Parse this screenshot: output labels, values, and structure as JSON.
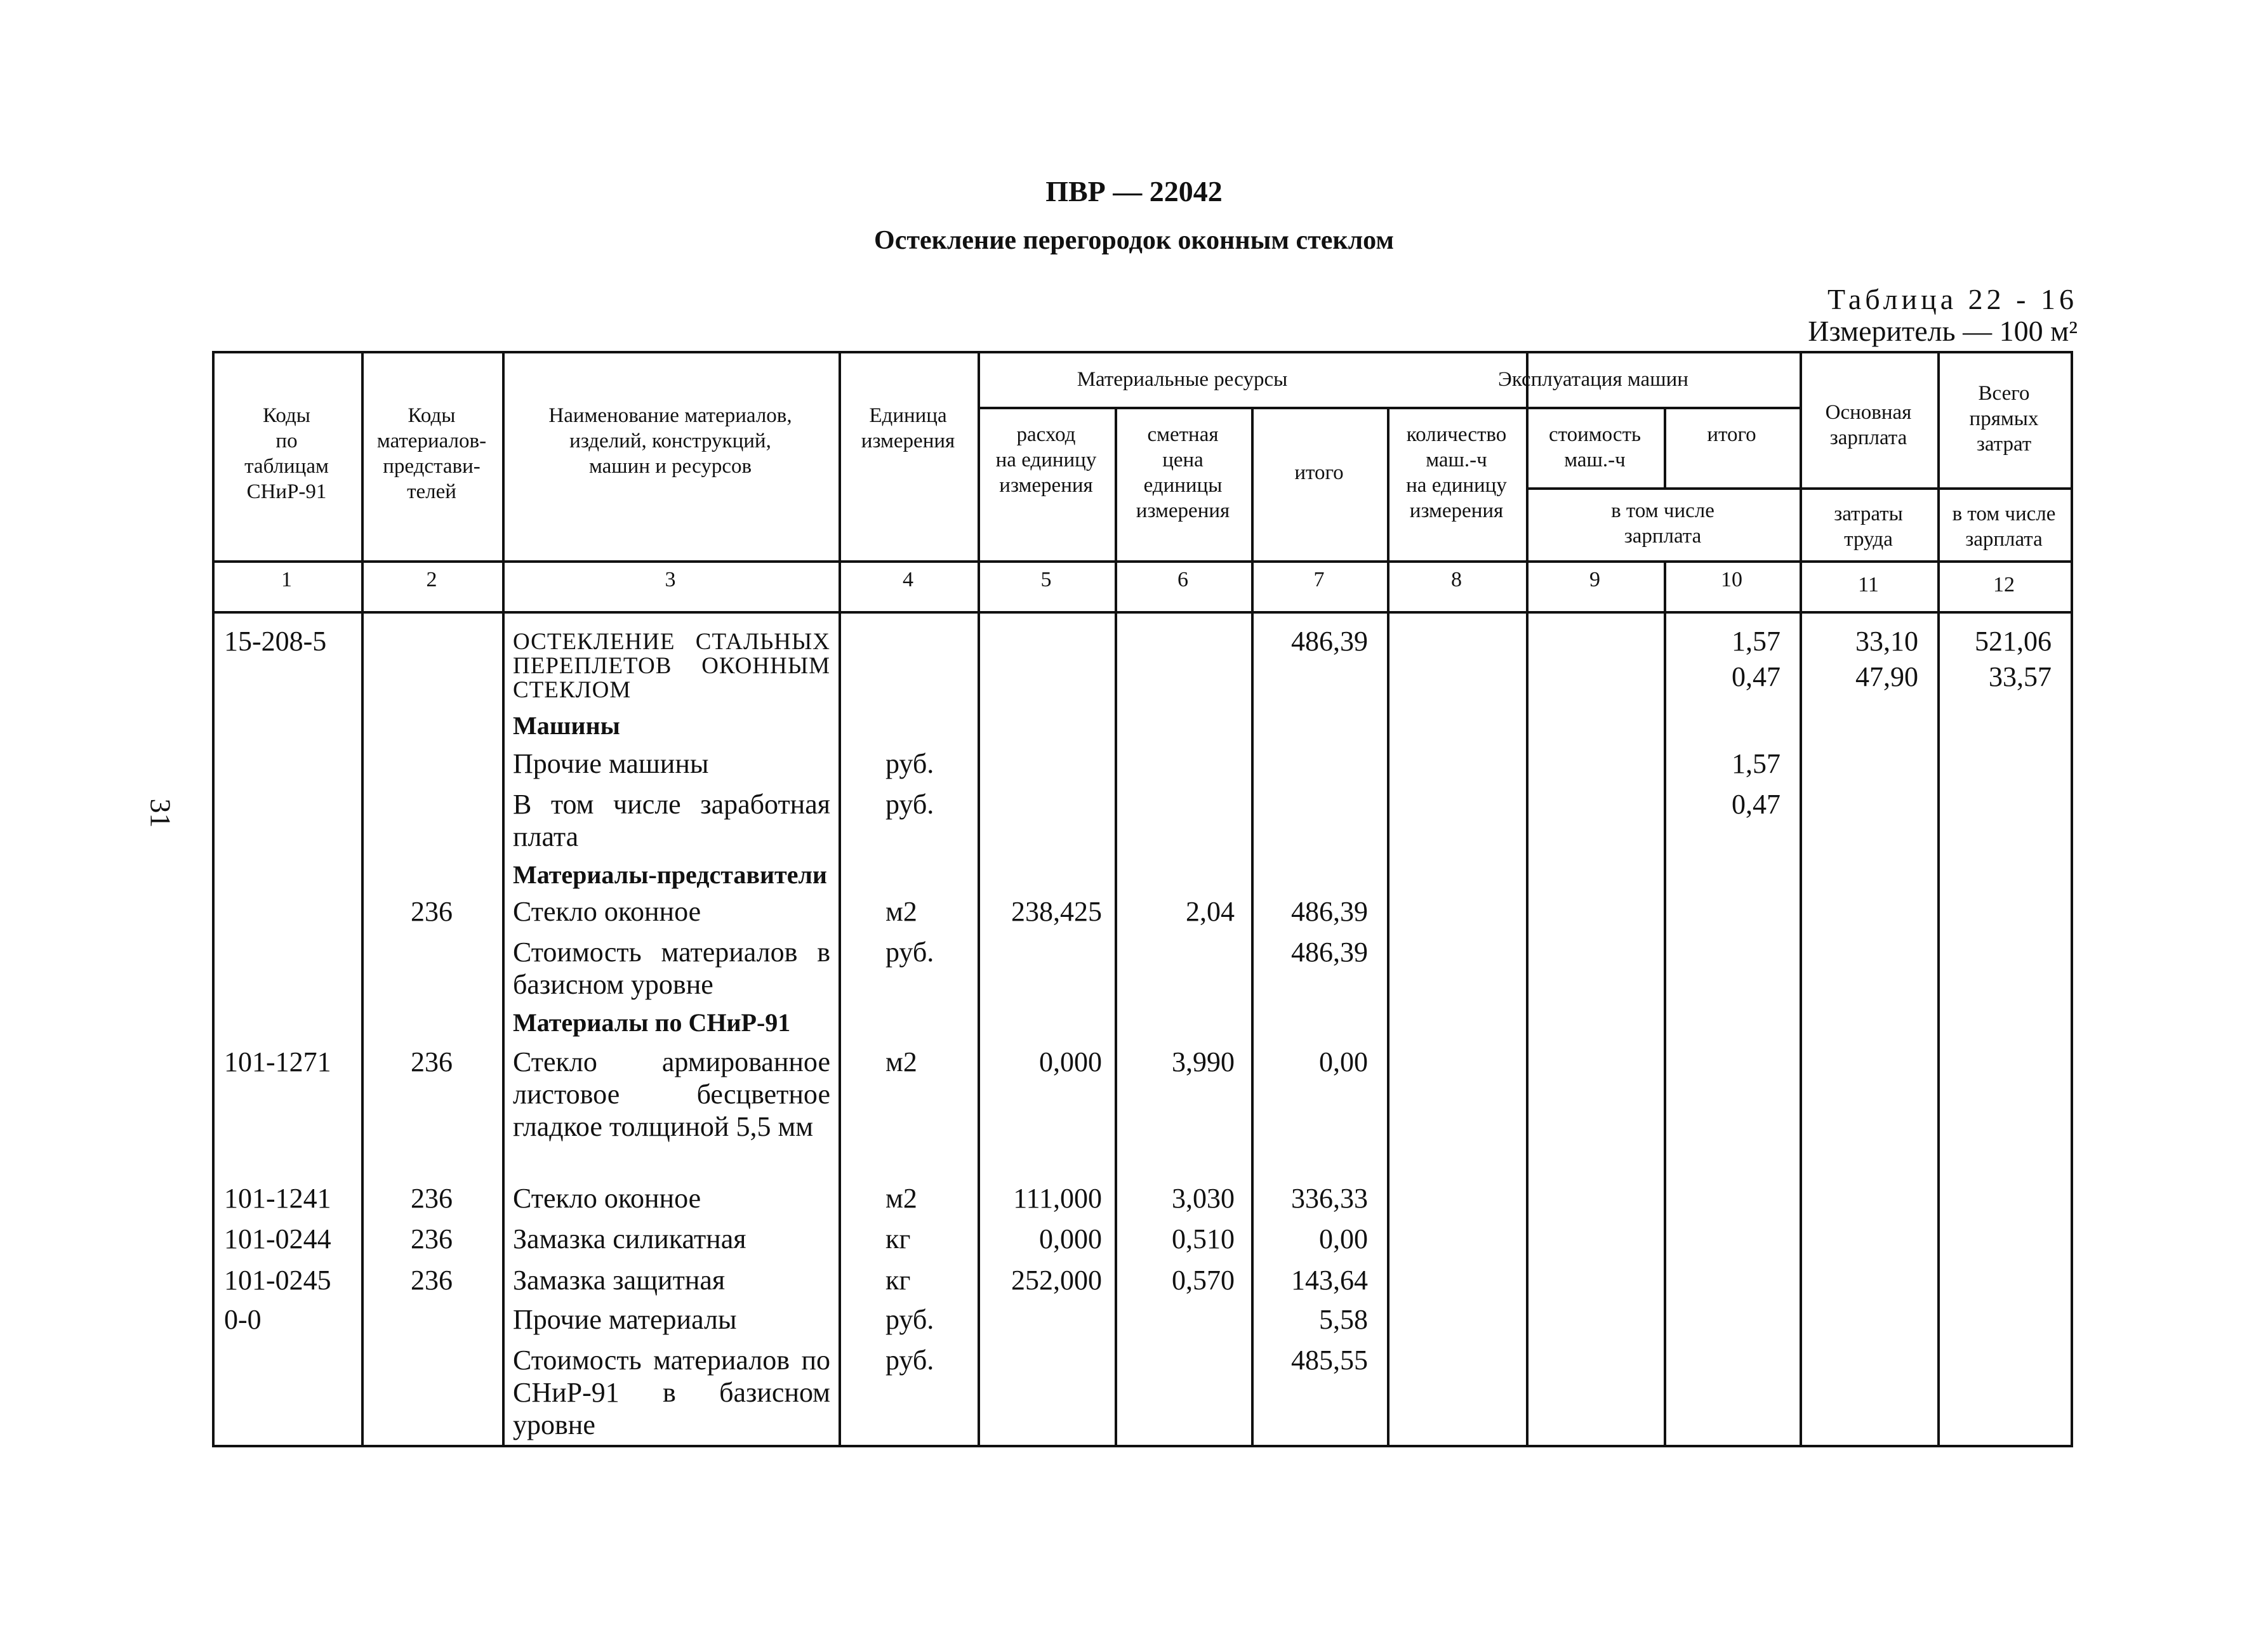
{
  "page_number": "31",
  "title": "ПВР — 22042",
  "subtitle": "Остекление перегородок оконным стеклом",
  "table_label": "Таблица 22 - 16",
  "measure": "Измеритель — 100 м²",
  "header": {
    "c1": [
      "Коды",
      "по",
      "таблицам",
      "СНиР-91"
    ],
    "c2": [
      "Коды",
      "материалов-",
      "представи-",
      "телей"
    ],
    "c3": [
      "Наименование материалов,",
      "изделий, конструкций,",
      "машин и ресурсов"
    ],
    "c4": [
      "Единица",
      "измерения"
    ],
    "mat": "Материальные ресурсы",
    "c5": [
      "расход",
      "на единицу",
      "измерения"
    ],
    "c6": [
      "сметная",
      "цена",
      "единицы",
      "измерения"
    ],
    "c7": [
      "итого"
    ],
    "mach": "Эксплуатация машин",
    "c8": [
      "количество",
      "маш.-ч",
      "на единицу",
      "измерения"
    ],
    "c9": [
      "стоимость",
      "маш.-ч"
    ],
    "c10": [
      "итого"
    ],
    "c910": [
      "в том числе",
      "зарплата"
    ],
    "c11": [
      "Основная",
      "зарплата"
    ],
    "c11b": [
      "затраты",
      "труда"
    ],
    "c12": [
      "Всего",
      "прямых",
      "затрат"
    ],
    "c12b": [
      "в том числе",
      "зарплата"
    ],
    "numbers": [
      "1",
      "2",
      "3",
      "4",
      "5",
      "6",
      "7",
      "8",
      "9",
      "10",
      "11",
      "12"
    ]
  },
  "rows": [
    {
      "code": "15-208-5",
      "mat": "",
      "name": "ОСТЕКЛЕНИЕ СТАЛЬНЫХ ПЕРЕПЛЕТОВ ОКОННЫМ СТЕКЛОМ",
      "style": "caps",
      "unit": "",
      "c5": "",
      "c6": "",
      "c7": "486,39",
      "c10": [
        "1,57",
        "0,47"
      ],
      "c11": [
        "33,10",
        "47,90"
      ],
      "c12": [
        "521,06",
        "33,57"
      ]
    },
    {
      "code": "",
      "mat": "",
      "name": "Машины",
      "style": "bold"
    },
    {
      "code": "",
      "mat": "",
      "name": "Прочие машины",
      "unit": "руб.",
      "c10": [
        "1,57"
      ]
    },
    {
      "code": "",
      "mat": "",
      "name": "В том числе заработная плата",
      "unit": "руб.",
      "c10": [
        "0,47"
      ]
    },
    {
      "code": "",
      "mat": "",
      "name": "Материалы-представители",
      "style": "bold"
    },
    {
      "code": "",
      "mat": "236",
      "name": "Стекло оконное",
      "unit": "м2",
      "c5": "238,425",
      "c6": "2,04",
      "c7": "486,39"
    },
    {
      "code": "",
      "mat": "",
      "name": "Стоимость материалов в базисном уровне",
      "unit": "руб.",
      "c7": "486,39"
    },
    {
      "code": "",
      "mat": "",
      "name": "Материалы по СНиР-91",
      "style": "bold"
    },
    {
      "code": "101-1271",
      "mat": "236",
      "name": "Стекло армированное листовое бесцветное гладкое толщиной 5,5 мм",
      "unit": "м2",
      "c5": "0,000",
      "c6": "3,990",
      "c7": "0,00"
    },
    {
      "code": "101-1241",
      "mat": "236",
      "name": "Стекло оконное",
      "unit": "м2",
      "c5": "111,000",
      "c6": "3,030",
      "c7": "336,33"
    },
    {
      "code": "101-0244",
      "mat": "236",
      "name": "Замазка силикатная",
      "unit": "кг",
      "c5": "0,000",
      "c6": "0,510",
      "c7": "0,00"
    },
    {
      "code": "101-0245",
      "mat": "236",
      "name": "Замазка защитная",
      "unit": "кг",
      "c5": "252,000",
      "c6": "0,570",
      "c7": "143,64"
    },
    {
      "code": "0-0",
      "mat": "",
      "name": "Прочие материалы",
      "unit": "руб.",
      "c7": "5,58"
    },
    {
      "code": "",
      "mat": "",
      "name": "Стоимость материалов по СНиР-91 в базисном уровне",
      "unit": "руб.",
      "c7": "485,55"
    }
  ]
}
